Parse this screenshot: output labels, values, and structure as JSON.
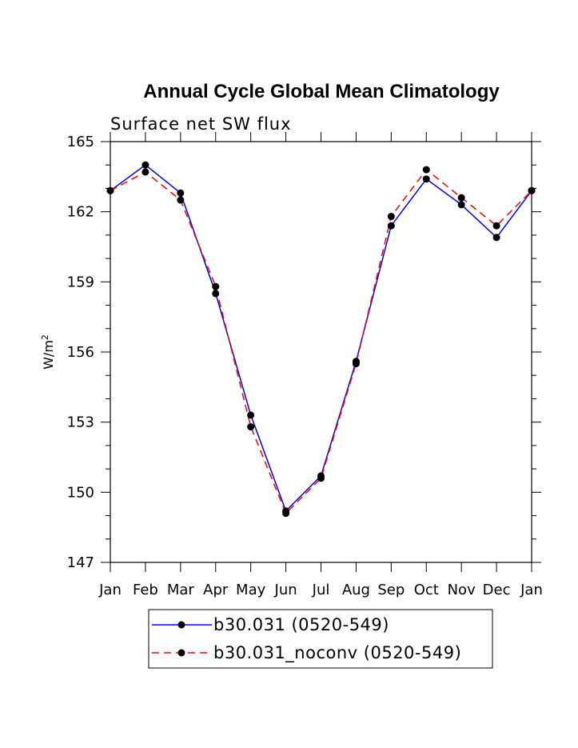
{
  "chart_data": {
    "type": "line",
    "title": "Annual Cycle Global Mean Climatology",
    "subtitle": "Surface net SW flux",
    "xlabel": "",
    "ylabel": "W/m",
    "ylabel_superscript": "2",
    "categories": [
      "Jan",
      "Feb",
      "Mar",
      "Apr",
      "May",
      "Jun",
      "Jul",
      "Aug",
      "Sep",
      "Oct",
      "Nov",
      "Dec",
      "Jan"
    ],
    "yticks": [
      "147",
      "150",
      "153",
      "156",
      "159",
      "162",
      "165"
    ],
    "ylim": [
      147,
      165
    ],
    "grid": false,
    "legend_position": "bottom",
    "series": [
      {
        "name": "b30.031 (0520-549)",
        "color": "#0000ff",
        "line_style": "solid",
        "marker": "filled-circle",
        "values": [
          162.9,
          164.0,
          162.8,
          158.5,
          153.3,
          149.2,
          150.7,
          155.6,
          161.4,
          163.4,
          162.3,
          160.9,
          162.9
        ]
      },
      {
        "name": "b30.031_noconv (0520-549)",
        "color": "#ff0000",
        "line_style": "dashed",
        "marker": "filled-circle",
        "values": [
          162.9,
          163.7,
          162.5,
          158.8,
          152.8,
          149.1,
          150.6,
          155.5,
          161.8,
          163.8,
          162.6,
          161.4,
          162.9
        ]
      }
    ]
  }
}
